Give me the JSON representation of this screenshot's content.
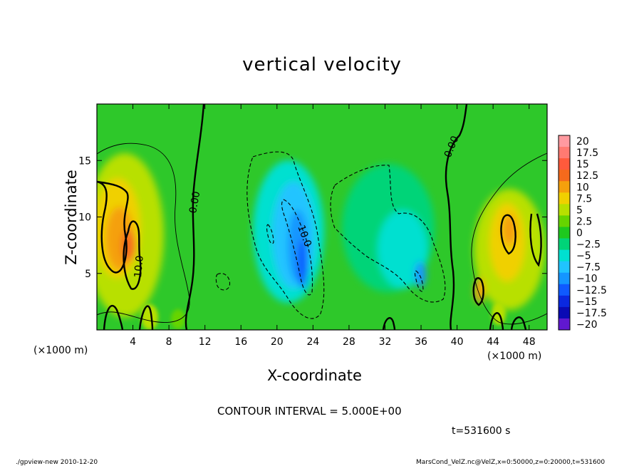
{
  "chart_data": {
    "type": "heatmap",
    "title": "vertical velocity",
    "xlabel": "X-coordinate",
    "ylabel": "Z-coordinate",
    "x_unit": "(×1000 m)",
    "x_range": [
      0,
      50
    ],
    "y_range": [
      0,
      20
    ],
    "x_ticks": [
      4,
      8,
      12,
      16,
      20,
      24,
      28,
      32,
      36,
      40,
      44,
      48
    ],
    "y_ticks": [
      5,
      10,
      15
    ],
    "colorbar": {
      "levels": [
        "20",
        "17.5",
        "15",
        "12.5",
        "10",
        "7.5",
        "5",
        "2.5",
        "0",
        "−2.5",
        "−5",
        "−7.5",
        "−10",
        "−12.5",
        "−15",
        "−17.5",
        "−20"
      ],
      "colors": [
        "#ff9aa0",
        "#ff7a72",
        "#ff5a3c",
        "#f56a1c",
        "#f5a00c",
        "#f0d000",
        "#b8e000",
        "#66d400",
        "#1ec81e",
        "#00d478",
        "#00e0d0",
        "#20c4ff",
        "#1496ff",
        "#0f5aff",
        "#0a28e0",
        "#0a0ab4",
        "#6018d0"
      ]
    },
    "contour_interval": "CONTOUR INTERVAL = 5.000E+00",
    "contour_labels": [
      "0.00",
      "0.00",
      "10.0",
      "10.0"
    ],
    "time": "t=531600 s"
  },
  "footer": {
    "left": "./gpview-new  2010-12-20",
    "right": "MarsCond_VelZ.nc@VelZ,x=0:50000,z=0:20000,t=531600"
  }
}
